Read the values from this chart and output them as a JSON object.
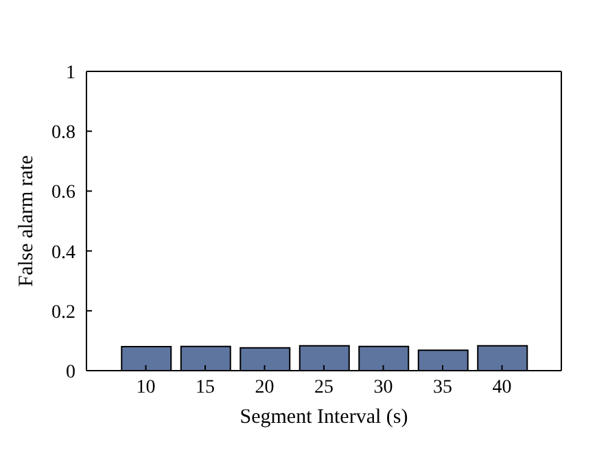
{
  "chart_data": {
    "type": "bar",
    "xlabel": "Segment Interval (s)",
    "ylabel": "False alarm rate",
    "x": [
      10,
      15,
      20,
      25,
      30,
      35,
      40
    ],
    "values": [
      0.08,
      0.081,
      0.076,
      0.083,
      0.081,
      0.068,
      0.083
    ],
    "color": "#5e75a0",
    "xlim": [
      5,
      45
    ],
    "xticks": [
      10,
      15,
      20,
      25,
      30,
      35,
      40
    ],
    "ylim": [
      0,
      1
    ],
    "yticks": [
      0,
      0.2,
      0.4,
      0.6,
      0.8,
      1
    ],
    "grid": false
  }
}
